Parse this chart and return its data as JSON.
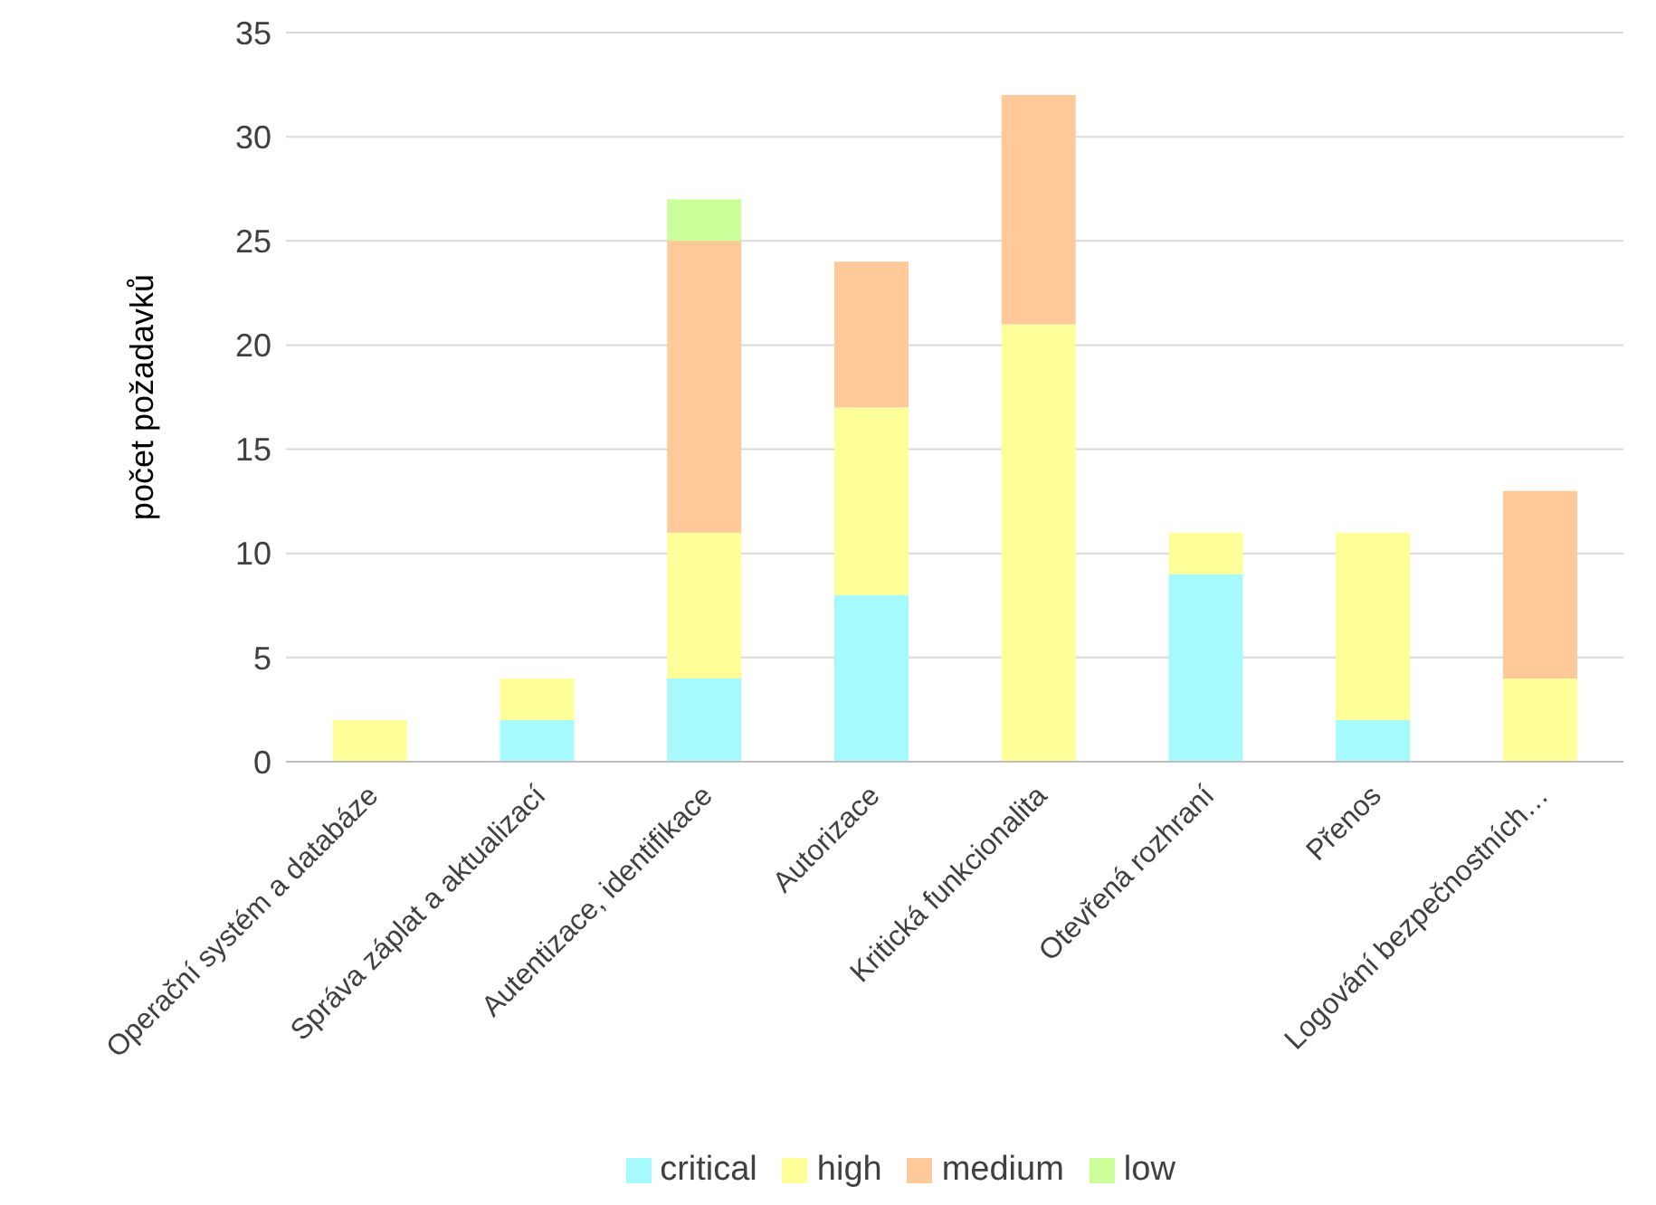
{
  "chart_data": {
    "type": "bar",
    "stacked": true,
    "ylabel": "počet požadavků",
    "categories": [
      "Operační systém a databáze",
      "Správa záplat a aktualizací",
      "Autentizace, identifikace",
      "Autorizace",
      "Kritická funkcionalita",
      "Otevřená rozhraní",
      "Přenos",
      "Logování bezpečnostních…"
    ],
    "series": [
      {
        "name": "critical",
        "color": "#a6fafc",
        "values": [
          0,
          2,
          4,
          8,
          0,
          9,
          2,
          0
        ]
      },
      {
        "name": "high",
        "color": "#ffff99",
        "values": [
          2,
          2,
          7,
          9,
          21,
          2,
          9,
          4
        ]
      },
      {
        "name": "medium",
        "color": "#ffc999",
        "values": [
          0,
          0,
          14,
          7,
          11,
          0,
          0,
          9
        ]
      },
      {
        "name": "low",
        "color": "#ccff99",
        "values": [
          0,
          0,
          2,
          0,
          0,
          0,
          0,
          0
        ]
      }
    ],
    "ylim": [
      0,
      35
    ],
    "yticks": [
      0,
      5,
      10,
      15,
      20,
      25,
      30,
      35
    ],
    "grid": "y",
    "legend": "bottom"
  }
}
